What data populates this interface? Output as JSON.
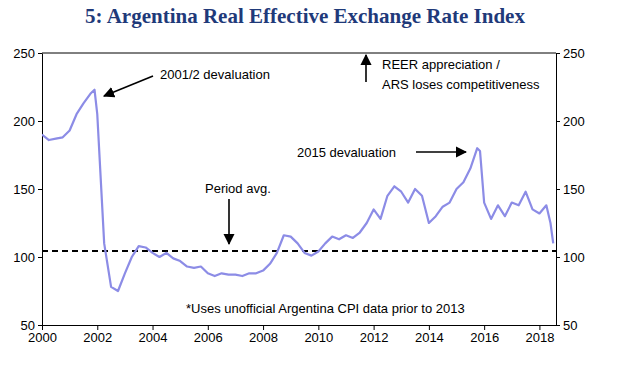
{
  "chart_data": {
    "type": "line",
    "title": "5: Argentina Real Effective Exchange Rate Index",
    "color": "#8c8ce6",
    "x": [
      2000.0,
      2000.25,
      2000.5,
      2000.75,
      2001.0,
      2001.25,
      2001.5,
      2001.75,
      2001.9,
      2002.0,
      2002.25,
      2002.5,
      2002.75,
      2003.0,
      2003.25,
      2003.5,
      2003.75,
      2004.0,
      2004.25,
      2004.5,
      2004.75,
      2005.0,
      2005.25,
      2005.5,
      2005.75,
      2006.0,
      2006.25,
      2006.5,
      2006.75,
      2007.0,
      2007.25,
      2007.5,
      2007.75,
      2008.0,
      2008.25,
      2008.5,
      2008.75,
      2009.0,
      2009.25,
      2009.5,
      2009.75,
      2010.0,
      2010.25,
      2010.5,
      2010.75,
      2011.0,
      2011.25,
      2011.5,
      2011.75,
      2012.0,
      2012.25,
      2012.5,
      2012.75,
      2013.0,
      2013.25,
      2013.5,
      2013.75,
      2014.0,
      2014.25,
      2014.5,
      2014.75,
      2015.0,
      2015.25,
      2015.5,
      2015.75,
      2015.85,
      2016.0,
      2016.25,
      2016.5,
      2016.75,
      2017.0,
      2017.25,
      2017.5,
      2017.75,
      2018.0,
      2018.25,
      2018.4,
      2018.5
    ],
    "values": [
      190,
      186,
      187,
      188,
      193,
      205,
      213,
      220,
      223,
      205,
      110,
      78,
      75,
      88,
      100,
      108,
      107,
      103,
      100,
      103,
      99,
      97,
      93,
      92,
      93,
      88,
      86,
      88,
      87,
      87,
      86,
      88,
      88,
      90,
      95,
      103,
      116,
      115,
      110,
      103,
      101,
      104,
      110,
      115,
      113,
      116,
      114,
      118,
      125,
      135,
      128,
      145,
      152,
      148,
      140,
      150,
      145,
      125,
      130,
      137,
      140,
      150,
      155,
      165,
      180,
      178,
      140,
      128,
      138,
      130,
      140,
      138,
      148,
      135,
      132,
      138,
      125,
      110
    ],
    "xlim": [
      2000,
      2018.6
    ],
    "xticks": [
      2000,
      2002,
      2004,
      2006,
      2008,
      2010,
      2012,
      2014,
      2016,
      2018
    ],
    "ylim": [
      50,
      250
    ],
    "yticks": [
      50,
      100,
      150,
      200,
      250
    ],
    "y2lim": [
      50,
      250
    ],
    "y2ticks": [
      50,
      100,
      150,
      200,
      250
    ],
    "grid": false,
    "reference_lines": [
      {
        "value": 104.5,
        "label": "Period avg.",
        "line_style": "dashed",
        "color": "#000000"
      }
    ],
    "annotations": [
      "2001/2 devaluation",
      "REER appreciation /",
      "ARS loses competitiveness",
      "2015 devaluation",
      "*Uses unofficial Argentina CPI data prior to 2013"
    ]
  }
}
